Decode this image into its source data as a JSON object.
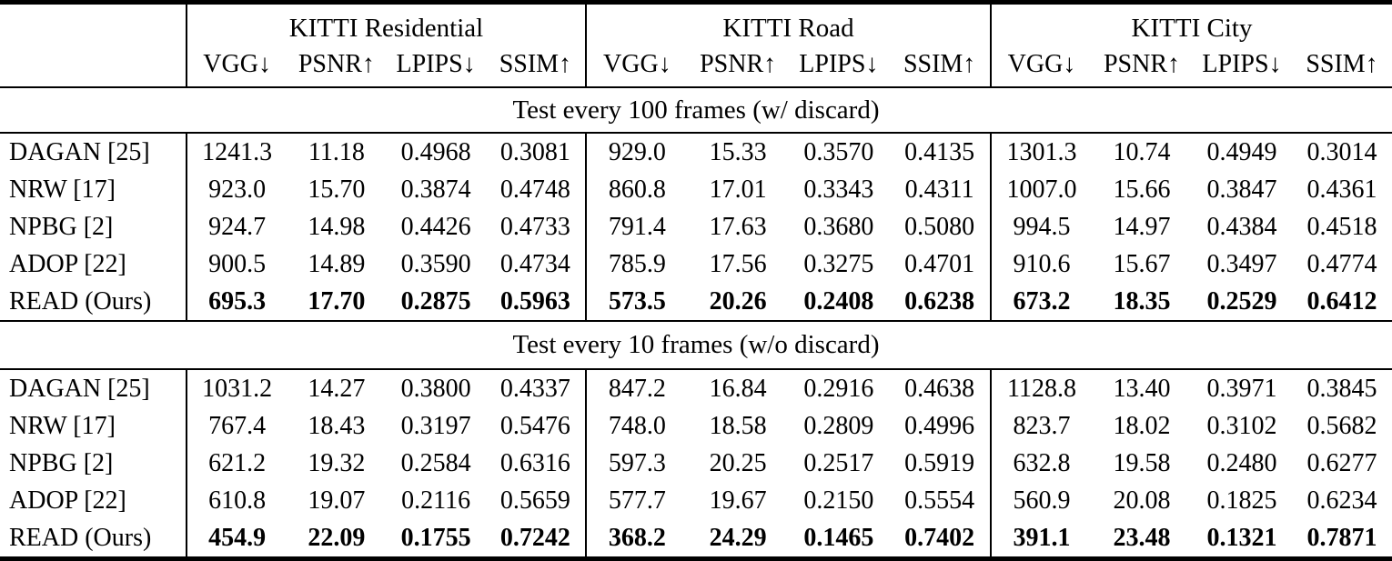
{
  "colors": {
    "text": "#000000",
    "background": "#ffffff",
    "rule": "#000000"
  },
  "table": {
    "col_groups": [
      {
        "label": "KITTI Residential"
      },
      {
        "label": "KITTI Road"
      },
      {
        "label": "KITTI City"
      }
    ],
    "metric_headers": [
      "VGG↓",
      "PSNR↑",
      "LPIPS↓",
      "SSIM↑"
    ],
    "sections": [
      {
        "title": "Test every 100 frames (w/ discard)",
        "rows": [
          {
            "method": "DAGAN [25]",
            "bold": false,
            "values": [
              "1241.3",
              "11.18",
              "0.4968",
              "0.3081",
              "929.0",
              "15.33",
              "0.3570",
              "0.4135",
              "1301.3",
              "10.74",
              "0.4949",
              "0.3014"
            ]
          },
          {
            "method": "NRW [17]",
            "bold": false,
            "values": [
              "923.0",
              "15.70",
              "0.3874",
              "0.4748",
              "860.8",
              "17.01",
              "0.3343",
              "0.4311",
              "1007.0",
              "15.66",
              "0.3847",
              "0.4361"
            ]
          },
          {
            "method": "NPBG [2]",
            "bold": false,
            "values": [
              "924.7",
              "14.98",
              "0.4426",
              "0.4733",
              "791.4",
              "17.63",
              "0.3680",
              "0.5080",
              "994.5",
              "14.97",
              "0.4384",
              "0.4518"
            ]
          },
          {
            "method": "ADOP [22]",
            "bold": false,
            "values": [
              "900.5",
              "14.89",
              "0.3590",
              "0.4734",
              "785.9",
              "17.56",
              "0.3275",
              "0.4701",
              "910.6",
              "15.67",
              "0.3497",
              "0.4774"
            ]
          },
          {
            "method": "READ (Ours)",
            "bold": true,
            "values": [
              "695.3",
              "17.70",
              "0.2875",
              "0.5963",
              "573.5",
              "20.26",
              "0.2408",
              "0.6238",
              "673.2",
              "18.35",
              "0.2529",
              "0.6412"
            ]
          }
        ]
      },
      {
        "title": "Test every 10 frames (w/o discard)",
        "rows": [
          {
            "method": "DAGAN [25]",
            "bold": false,
            "values": [
              "1031.2",
              "14.27",
              "0.3800",
              "0.4337",
              "847.2",
              "16.84",
              "0.2916",
              "0.4638",
              "1128.8",
              "13.40",
              "0.3971",
              "0.3845"
            ]
          },
          {
            "method": "NRW [17]",
            "bold": false,
            "values": [
              "767.4",
              "18.43",
              "0.3197",
              "0.5476",
              "748.0",
              "18.58",
              "0.2809",
              "0.4996",
              "823.7",
              "18.02",
              "0.3102",
              "0.5682"
            ]
          },
          {
            "method": "NPBG [2]",
            "bold": false,
            "values": [
              "621.2",
              "19.32",
              "0.2584",
              "0.6316",
              "597.3",
              "20.25",
              "0.2517",
              "0.5919",
              "632.8",
              "19.58",
              "0.2480",
              "0.6277"
            ]
          },
          {
            "method": "ADOP [22]",
            "bold": false,
            "values": [
              "610.8",
              "19.07",
              "0.2116",
              "0.5659",
              "577.7",
              "19.67",
              "0.2150",
              "0.5554",
              "560.9",
              "20.08",
              "0.1825",
              "0.6234"
            ]
          },
          {
            "method": "READ (Ours)",
            "bold": true,
            "values": [
              "454.9",
              "22.09",
              "0.1755",
              "0.7242",
              "368.2",
              "24.29",
              "0.1465",
              "0.7402",
              "391.1",
              "23.48",
              "0.1321",
              "0.7871"
            ]
          }
        ]
      }
    ]
  }
}
